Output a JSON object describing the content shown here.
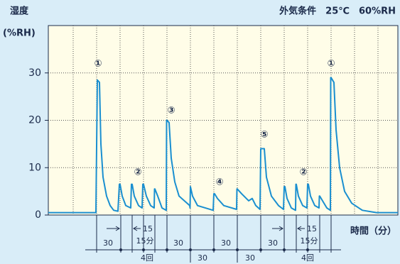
{
  "chart_data": {
    "type": "line",
    "y_label": "湿度",
    "y_unit": "(%RH)",
    "condition": "外気条件　25℃　60%RH",
    "x_label": "時間（分）",
    "x": [
      0,
      67,
      69,
      72,
      74,
      77,
      82,
      87,
      92,
      98,
      100,
      101,
      104,
      109,
      116,
      117,
      118,
      121,
      127,
      132,
      133,
      134,
      138,
      144,
      149,
      149.5,
      150,
      154,
      160,
      166,
      166.5,
      167,
      170,
      173,
      178,
      184,
      199,
      199.5,
      200,
      203,
      210,
      232,
      233,
      234,
      238,
      247,
      265,
      265.5,
      266,
      272,
      282,
      287,
      292,
      298,
      299,
      300,
      304,
      307,
      314,
      324,
      331,
      332,
      333,
      336,
      342,
      348,
      348.5,
      349,
      352,
      358,
      364,
      365,
      366,
      369,
      375,
      381,
      381.5,
      382,
      386,
      392,
      397,
      397.5,
      398,
      402,
      405,
      410,
      417,
      427,
      442,
      462,
      492
    ],
    "series": [
      {
        "name": "湿度",
        "color": "#1a8fd0",
        "values": [
          0.5,
          0.5,
          28.5,
          28,
          15,
          8,
          4,
          2,
          1,
          0.8,
          6.5,
          6.5,
          4,
          2,
          1.5,
          6.5,
          6.5,
          4,
          2,
          1.5,
          6.5,
          6.5,
          4,
          2,
          1.5,
          5.5,
          5.5,
          4,
          1.5,
          1,
          20,
          20,
          19.5,
          12,
          7,
          4,
          2,
          1.5,
          6,
          4,
          2,
          1,
          4.5,
          4.5,
          3.5,
          2,
          1.2,
          5.5,
          5.5,
          4.5,
          3,
          3.5,
          2,
          1.2,
          14,
          14,
          14,
          8,
          4,
          2,
          1.2,
          6,
          6,
          3.5,
          1.5,
          1,
          6.5,
          6.5,
          4,
          2,
          1.5,
          6.5,
          6.5,
          4,
          2,
          1.5,
          4,
          4,
          3,
          1.5,
          1,
          29,
          29,
          28,
          18,
          10,
          5,
          2.5,
          1,
          0.5,
          0.5
        ]
      }
    ],
    "xlim": [
      0,
      492
    ],
    "xticks": [
      35,
      68,
      101,
      134,
      167,
      200,
      233,
      266,
      299,
      332,
      365,
      398,
      431,
      464
    ],
    "ylim": [
      0,
      40
    ],
    "yticks": [
      0,
      10,
      20,
      30
    ],
    "grid": true,
    "peak_labels": [
      "①",
      "②",
      "③",
      "④",
      "⑤",
      "②",
      "①"
    ],
    "intervals": [
      "30",
      "15",
      "15分",
      "4回",
      "30",
      "30",
      "30",
      "30",
      "30",
      "15",
      "15分",
      "4回"
    ]
  }
}
